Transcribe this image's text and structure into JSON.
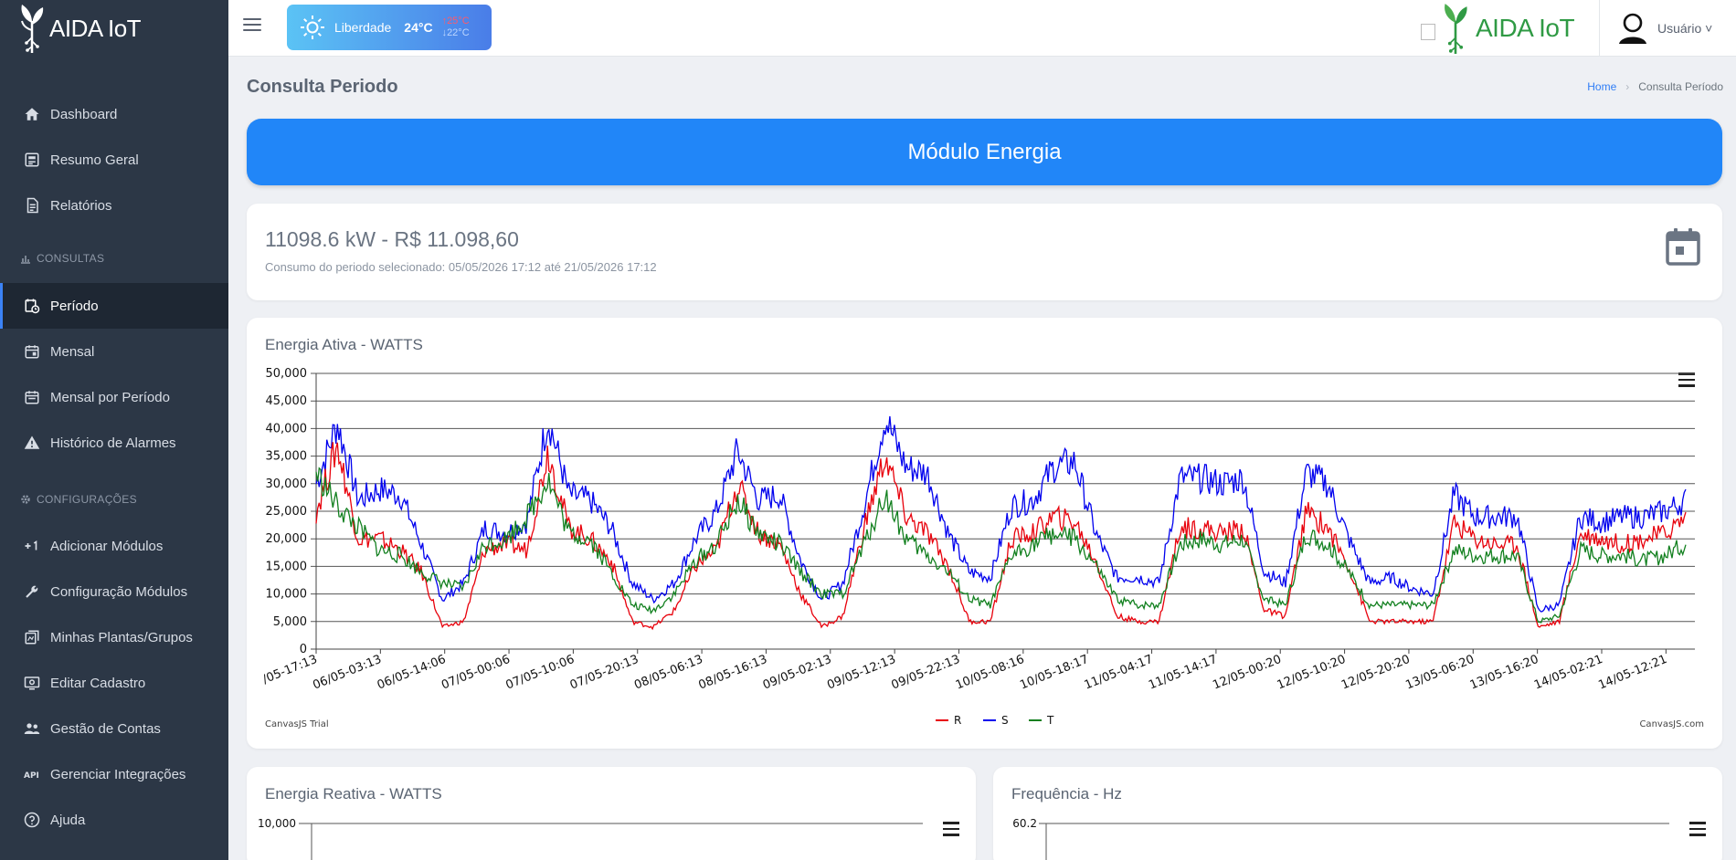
{
  "app": {
    "brand": "AIDA IoT",
    "top_logo_text": "AIDA IoT"
  },
  "weather": {
    "city": "Liberdade",
    "temp": "24°C",
    "max": "25°C",
    "min": "22°C"
  },
  "user": {
    "name": "Usuário ˅"
  },
  "sidebar": {
    "items": [
      {
        "label": "Dashboard",
        "icon": "home-icon"
      },
      {
        "label": "Resumo Geral",
        "icon": "summary-icon"
      },
      {
        "label": "Relatórios",
        "icon": "reports-icon"
      }
    ],
    "section_consultas": "CONSULTAS",
    "consultas": [
      {
        "label": "Período",
        "icon": "calendar-clock-icon",
        "active": true
      },
      {
        "label": "Mensal",
        "icon": "calendar-icon"
      },
      {
        "label": "Mensal por Período",
        "icon": "calendar-range-icon"
      },
      {
        "label": "Histórico de Alarmes",
        "icon": "alarm-icon"
      }
    ],
    "section_config": "CONFIGURAÇÕES",
    "config": [
      {
        "label": "Adicionar Módulos",
        "icon": "plus-one-icon"
      },
      {
        "label": "Configuração Módulos",
        "icon": "wrench-icon"
      },
      {
        "label": "Minhas Plantas/Grupos",
        "icon": "plants-icon"
      },
      {
        "label": "Editar Cadastro",
        "icon": "edit-profile-icon"
      },
      {
        "label": "Gestão de Contas",
        "icon": "accounts-icon"
      },
      {
        "label": "Gerenciar Integrações",
        "icon": "api-icon"
      },
      {
        "label": "Ajuda",
        "icon": "help-icon"
      }
    ]
  },
  "page": {
    "title": "Consulta Periodo",
    "breadcrumb_home": "Home",
    "breadcrumb_current": "Consulta Período",
    "banner": "Módulo Energia",
    "summary_value": "11098.6 kW - R$ 11.098,60",
    "summary_caption": "Consumo do periodo selecionado: 05/05/2026 17:12 até 21/05/2026 17:12"
  },
  "chart_data": [
    {
      "type": "line",
      "title": "Energia Ativa - WATTS",
      "ylim": [
        0,
        50000
      ],
      "yticks": [
        "0",
        "5,000",
        "10,000",
        "15,000",
        "20,000",
        "25,000",
        "30,000",
        "35,000",
        "40,000",
        "45,000",
        "50,000"
      ],
      "xticks": [
        "/05-17:13",
        "06/05-03:13",
        "06/05-14:06",
        "07/05-00:06",
        "07/05-10:06",
        "07/05-20:13",
        "08/05-06:13",
        "08/05-16:13",
        "09/05-02:13",
        "09/05-12:13",
        "09/05-22:13",
        "10/05-08:16",
        "10/05-18:17",
        "11/05-04:17",
        "11/05-14:17",
        "12/05-00:20",
        "12/05-10:20",
        "12/05-20:20",
        "13/05-06:20",
        "13/05-16:20",
        "14/05-02:21",
        "14/05-12:21"
      ],
      "legend": [
        "R",
        "S",
        "T"
      ],
      "legend_position": "bottom-center",
      "colors": {
        "R": "#e8000b",
        "S": "#0000ee",
        "T": "#12801f"
      },
      "watermark_left": "CanvasJS Trial",
      "watermark_right": "CanvasJS.com",
      "series": [
        {
          "name": "S",
          "values": [
            30000,
            41000,
            27000,
            29000,
            28000,
            19000,
            9000,
            12000,
            22000,
            21000,
            23000,
            42000,
            28000,
            27000,
            22000,
            12000,
            9000,
            12000,
            20000,
            25000,
            36000,
            27000,
            28000,
            16000,
            9000,
            12000,
            26000,
            42000,
            33000,
            32000,
            21000,
            14000,
            13000,
            26000,
            27000,
            33000,
            34000,
            21000,
            13000,
            13000,
            12000,
            31000,
            31000,
            30000,
            31000,
            14000,
            12000,
            32000,
            30000,
            20000,
            12000,
            13000,
            11000,
            10000,
            28000,
            24000,
            24000,
            24000,
            7000,
            8000,
            24000,
            23000,
            24000,
            24000,
            25000,
            27000
          ]
        },
        {
          "name": "R",
          "values": [
            25000,
            37000,
            20000,
            20000,
            18000,
            14000,
            4000,
            5000,
            18000,
            19000,
            18000,
            36000,
            22000,
            20000,
            16000,
            5000,
            4000,
            7000,
            15000,
            18000,
            30000,
            21000,
            19000,
            10000,
            4000,
            6000,
            22000,
            35000,
            24000,
            21000,
            15000,
            5000,
            5000,
            20000,
            21000,
            24000,
            23000,
            16000,
            6000,
            5000,
            5000,
            22000,
            22000,
            21000,
            22000,
            7000,
            6000,
            25000,
            22000,
            15000,
            5000,
            5000,
            5000,
            5000,
            23000,
            20000,
            19000,
            19000,
            4000,
            5000,
            21000,
            20000,
            19000,
            20000,
            21000,
            24000
          ]
        },
        {
          "name": "T",
          "values": [
            32000,
            26000,
            22000,
            18000,
            17000,
            14000,
            12000,
            11000,
            19000,
            20000,
            24000,
            31000,
            21000,
            20000,
            14000,
            8000,
            7000,
            10000,
            16000,
            19000,
            27000,
            21000,
            19000,
            14000,
            10000,
            10000,
            19000,
            28000,
            20000,
            17000,
            14000,
            9000,
            8000,
            17000,
            19000,
            21000,
            20000,
            15000,
            9000,
            8000,
            8000,
            19000,
            20000,
            19000,
            20000,
            9000,
            8000,
            21000,
            19000,
            14000,
            8000,
            8000,
            8000,
            8000,
            18000,
            17000,
            17000,
            17000,
            5000,
            6000,
            18000,
            17000,
            17000,
            16000,
            17000,
            19000
          ]
        }
      ]
    },
    {
      "type": "line",
      "title": "Energia Reativa - WATTS",
      "yticks_visible": [
        "10,000"
      ]
    },
    {
      "type": "line",
      "title": "Frequência - Hz",
      "yticks_visible": [
        "60.2"
      ]
    }
  ]
}
